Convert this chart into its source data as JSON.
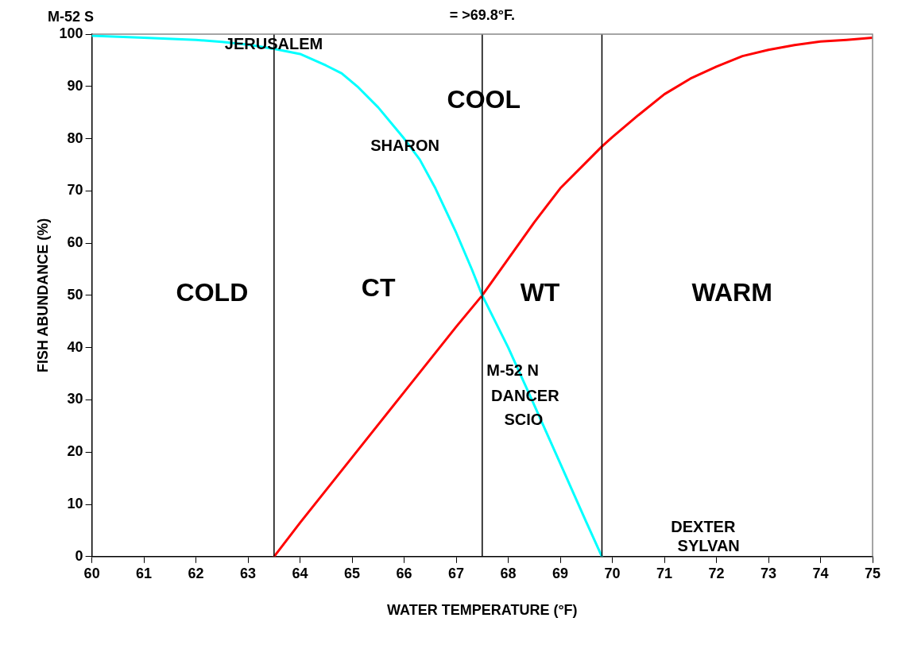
{
  "chart_data": {
    "type": "line",
    "xlabel": "WATER TEMPERATURE (°F)",
    "ylabel": "FISH ABUNDANCE (%)",
    "xlim": [
      60,
      75
    ],
    "xticks": [
      60,
      61,
      62,
      63,
      64,
      65,
      66,
      67,
      68,
      69,
      70,
      71,
      72,
      73,
      74,
      75
    ],
    "ylim": [
      0,
      100
    ],
    "yticks": [
      0,
      10,
      20,
      30,
      40,
      50,
      60,
      70,
      80,
      90,
      100
    ],
    "grid": false,
    "legend": false,
    "marker": "none",
    "line_style": "solid",
    "series": [
      {
        "color": "#00ffff",
        "x": [
          60,
          61,
          62,
          62.5,
          63,
          63.5,
          64,
          64.5,
          64.8,
          65.1,
          65.5,
          66,
          66.3,
          66.6,
          67,
          67.3,
          67.5,
          68,
          68.5,
          69,
          69.5,
          69.8
        ],
        "values": [
          99.7,
          99.3,
          98.9,
          98.5,
          98,
          97.2,
          96.2,
          94,
          92.5,
          90,
          86,
          80,
          76,
          70.5,
          62,
          55,
          50,
          40,
          29,
          17.8,
          6.6,
          0
        ]
      },
      {
        "color": "#ff0000",
        "x": [
          63.5,
          64,
          65,
          66,
          67,
          67.5,
          68,
          68.5,
          69,
          69.5,
          69.8,
          70,
          70.5,
          71,
          71.5,
          72,
          72.5,
          73,
          73.5,
          74,
          74.5,
          75
        ],
        "values": [
          0,
          6.5,
          19,
          31.5,
          44,
          50,
          57,
          64,
          70.5,
          75.5,
          78.5,
          80.3,
          84.5,
          88.5,
          91.5,
          93.8,
          95.8,
          97,
          97.9,
          98.6,
          98.9,
          99.3
        ]
      }
    ],
    "ref_lines": [
      {
        "axis": "x",
        "value": 63.5,
        "color": "#000000"
      },
      {
        "axis": "x",
        "value": 67.5,
        "color": "#000000"
      },
      {
        "axis": "x",
        "value": 69.8,
        "color": "#000000"
      }
    ],
    "annotations": [
      "M-52 S",
      "= >69.8°F.",
      "JERUSALEM",
      "SHARON",
      "COOL",
      "COLD",
      "CT",
      "WT",
      "WARM",
      "M-52 N",
      "DANCER",
      "SCIO",
      "DEXTER",
      "SYLVAN"
    ]
  }
}
